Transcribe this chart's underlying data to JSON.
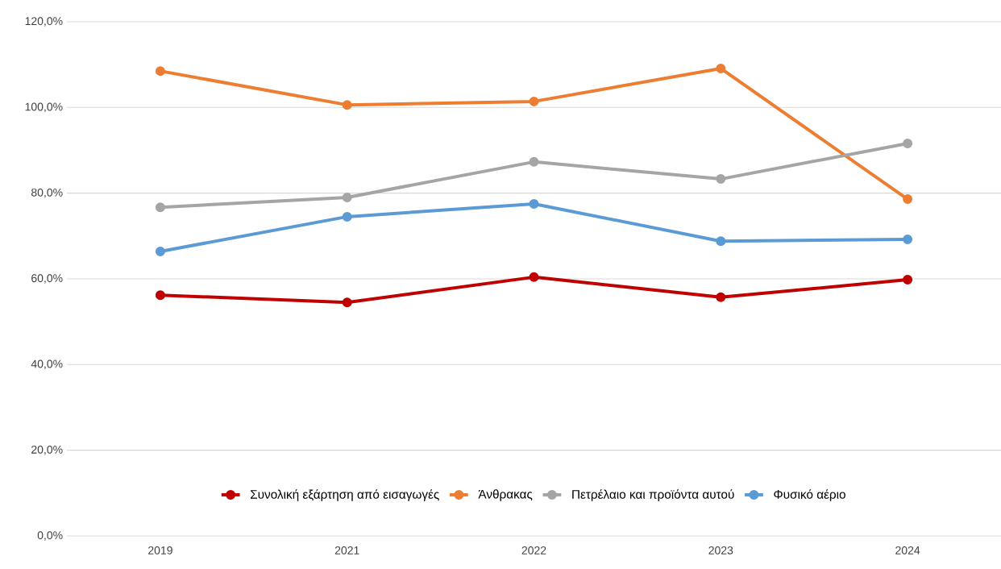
{
  "chart_data": {
    "type": "line",
    "categories": [
      "2019",
      "2021",
      "2022",
      "2023",
      "2024"
    ],
    "series": [
      {
        "name": "Συνολική εξάρτηση από εισαγωγές",
        "color": "#c00000",
        "values": [
          56.2,
          54.5,
          60.4,
          55.7,
          59.8
        ]
      },
      {
        "name": "Άνθρακας",
        "color": "#ed7d31",
        "values": [
          108.5,
          100.6,
          101.4,
          109.1,
          78.6
        ]
      },
      {
        "name": "Πετρέλαιο και προϊόντα αυτού",
        "color": "#a5a5a5",
        "values": [
          76.7,
          79.0,
          87.3,
          83.3,
          91.6
        ]
      },
      {
        "name": "Φυσικό αέριο",
        "color": "#5b9bd5",
        "values": [
          66.4,
          74.5,
          77.5,
          68.8,
          69.2
        ]
      }
    ],
    "ylim": [
      0,
      120
    ],
    "yticks": [
      {
        "value": 0,
        "label": "0,0%"
      },
      {
        "value": 20,
        "label": "20,0%"
      },
      {
        "value": 40,
        "label": "40,0%"
      },
      {
        "value": 60,
        "label": "60,0%"
      },
      {
        "value": 80,
        "label": "80,0%"
      },
      {
        "value": 100,
        "label": "100,0%"
      },
      {
        "value": 120,
        "label": "120,0%"
      }
    ],
    "grid": "y",
    "legend": "bottom",
    "marker": "circle",
    "line_style": "solid"
  }
}
